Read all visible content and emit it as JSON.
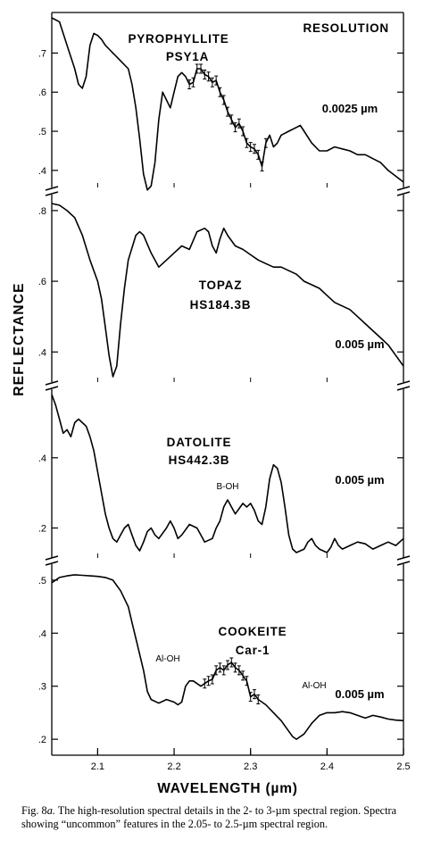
{
  "chart_data": {
    "type": "line",
    "xlabel": "WAVELENGTH (µm)",
    "ylabel": "REFLECTANCE",
    "xlim": [
      2.04,
      2.5
    ],
    "x_ticks": [
      "2.1",
      "2.2",
      "2.3",
      "2.4",
      "2.5"
    ],
    "resolution_heading": "RESOLUTION",
    "panels": [
      {
        "name": "PYROPHYLLITE",
        "sample": "PSY1A",
        "resolution": "0.0025 µm",
        "ylim": [
          0.37,
          0.79
        ],
        "y_ticks": [
          ".4",
          ".5",
          ".6",
          ".7"
        ],
        "annotations": [],
        "error_bar_range": [
          2.22,
          2.32
        ],
        "points": [
          [
            2.04,
            0.79
          ],
          [
            2.05,
            0.78
          ],
          [
            2.06,
            0.72
          ],
          [
            2.07,
            0.66
          ],
          [
            2.075,
            0.62
          ],
          [
            2.08,
            0.61
          ],
          [
            2.085,
            0.64
          ],
          [
            2.09,
            0.72
          ],
          [
            2.095,
            0.75
          ],
          [
            2.1,
            0.745
          ],
          [
            2.105,
            0.735
          ],
          [
            2.11,
            0.72
          ],
          [
            2.115,
            0.71
          ],
          [
            2.12,
            0.7
          ],
          [
            2.13,
            0.68
          ],
          [
            2.14,
            0.66
          ],
          [
            2.145,
            0.62
          ],
          [
            2.15,
            0.56
          ],
          [
            2.155,
            0.48
          ],
          [
            2.16,
            0.39
          ],
          [
            2.165,
            0.35
          ],
          [
            2.17,
            0.36
          ],
          [
            2.175,
            0.42
          ],
          [
            2.18,
            0.53
          ],
          [
            2.185,
            0.6
          ],
          [
            2.19,
            0.58
          ],
          [
            2.195,
            0.56
          ],
          [
            2.2,
            0.6
          ],
          [
            2.205,
            0.64
          ],
          [
            2.21,
            0.65
          ],
          [
            2.215,
            0.64
          ],
          [
            2.22,
            0.62
          ],
          [
            2.225,
            0.625
          ],
          [
            2.23,
            0.66
          ],
          [
            2.235,
            0.66
          ],
          [
            2.24,
            0.645
          ],
          [
            2.245,
            0.64
          ],
          [
            2.25,
            0.625
          ],
          [
            2.255,
            0.63
          ],
          [
            2.26,
            0.6
          ],
          [
            2.265,
            0.58
          ],
          [
            2.27,
            0.55
          ],
          [
            2.275,
            0.53
          ],
          [
            2.28,
            0.51
          ],
          [
            2.285,
            0.52
          ],
          [
            2.29,
            0.5
          ],
          [
            2.295,
            0.47
          ],
          [
            2.3,
            0.46
          ],
          [
            2.305,
            0.455
          ],
          [
            2.31,
            0.44
          ],
          [
            2.315,
            0.41
          ],
          [
            2.32,
            0.47
          ],
          [
            2.325,
            0.49
          ],
          [
            2.33,
            0.46
          ],
          [
            2.335,
            0.47
          ],
          [
            2.34,
            0.49
          ],
          [
            2.35,
            0.5
          ],
          [
            2.36,
            0.51
          ],
          [
            2.365,
            0.515
          ],
          [
            2.37,
            0.5
          ],
          [
            2.38,
            0.47
          ],
          [
            2.39,
            0.45
          ],
          [
            2.4,
            0.45
          ],
          [
            2.41,
            0.46
          ],
          [
            2.42,
            0.455
          ],
          [
            2.43,
            0.45
          ],
          [
            2.44,
            0.44
          ],
          [
            2.45,
            0.44
          ],
          [
            2.46,
            0.43
          ],
          [
            2.47,
            0.42
          ],
          [
            2.48,
            0.4
          ],
          [
            2.49,
            0.385
          ],
          [
            2.5,
            0.37
          ]
        ]
      },
      {
        "name": "TOPAZ",
        "sample": "HS184.3B",
        "resolution": "0.005 µm",
        "ylim": [
          0.33,
          0.83
        ],
        "y_ticks": [
          ".4",
          ".6",
          ".8"
        ],
        "annotations": [],
        "points": [
          [
            2.04,
            0.82
          ],
          [
            2.05,
            0.815
          ],
          [
            2.06,
            0.8
          ],
          [
            2.07,
            0.78
          ],
          [
            2.08,
            0.73
          ],
          [
            2.09,
            0.66
          ],
          [
            2.1,
            0.6
          ],
          [
            2.105,
            0.55
          ],
          [
            2.11,
            0.47
          ],
          [
            2.115,
            0.39
          ],
          [
            2.12,
            0.33
          ],
          [
            2.125,
            0.36
          ],
          [
            2.13,
            0.48
          ],
          [
            2.135,
            0.58
          ],
          [
            2.14,
            0.66
          ],
          [
            2.15,
            0.73
          ],
          [
            2.155,
            0.74
          ],
          [
            2.16,
            0.73
          ],
          [
            2.17,
            0.68
          ],
          [
            2.18,
            0.64
          ],
          [
            2.19,
            0.66
          ],
          [
            2.2,
            0.68
          ],
          [
            2.21,
            0.7
          ],
          [
            2.22,
            0.69
          ],
          [
            2.23,
            0.74
          ],
          [
            2.24,
            0.75
          ],
          [
            2.245,
            0.74
          ],
          [
            2.25,
            0.7
          ],
          [
            2.255,
            0.68
          ],
          [
            2.26,
            0.72
          ],
          [
            2.265,
            0.75
          ],
          [
            2.27,
            0.73
          ],
          [
            2.28,
            0.7
          ],
          [
            2.29,
            0.69
          ],
          [
            2.3,
            0.675
          ],
          [
            2.31,
            0.66
          ],
          [
            2.32,
            0.65
          ],
          [
            2.33,
            0.64
          ],
          [
            2.34,
            0.64
          ],
          [
            2.35,
            0.63
          ],
          [
            2.36,
            0.62
          ],
          [
            2.37,
            0.6
          ],
          [
            2.38,
            0.59
          ],
          [
            2.39,
            0.58
          ],
          [
            2.4,
            0.56
          ],
          [
            2.41,
            0.54
          ],
          [
            2.42,
            0.53
          ],
          [
            2.43,
            0.52
          ],
          [
            2.44,
            0.5
          ],
          [
            2.45,
            0.48
          ],
          [
            2.46,
            0.46
          ],
          [
            2.47,
            0.44
          ],
          [
            2.48,
            0.42
          ],
          [
            2.49,
            0.39
          ],
          [
            2.5,
            0.36
          ]
        ]
      },
      {
        "name": "DATOLITE",
        "sample": "HS442.3B",
        "resolution": "0.005 µm",
        "ylim": [
          0.13,
          0.58
        ],
        "y_ticks": [
          ".2",
          ".4"
        ],
        "annotations": [
          "B-OH"
        ],
        "points": [
          [
            2.04,
            0.58
          ],
          [
            2.045,
            0.55
          ],
          [
            2.05,
            0.51
          ],
          [
            2.055,
            0.47
          ],
          [
            2.06,
            0.48
          ],
          [
            2.065,
            0.46
          ],
          [
            2.07,
            0.5
          ],
          [
            2.075,
            0.51
          ],
          [
            2.08,
            0.5
          ],
          [
            2.085,
            0.49
          ],
          [
            2.09,
            0.46
          ],
          [
            2.095,
            0.42
          ],
          [
            2.1,
            0.36
          ],
          [
            2.105,
            0.3
          ],
          [
            2.11,
            0.24
          ],
          [
            2.115,
            0.2
          ],
          [
            2.12,
            0.17
          ],
          [
            2.125,
            0.16
          ],
          [
            2.13,
            0.18
          ],
          [
            2.135,
            0.2
          ],
          [
            2.14,
            0.21
          ],
          [
            2.145,
            0.18
          ],
          [
            2.15,
            0.15
          ],
          [
            2.155,
            0.135
          ],
          [
            2.16,
            0.16
          ],
          [
            2.165,
            0.19
          ],
          [
            2.17,
            0.2
          ],
          [
            2.175,
            0.18
          ],
          [
            2.18,
            0.17
          ],
          [
            2.19,
            0.2
          ],
          [
            2.195,
            0.22
          ],
          [
            2.2,
            0.2
          ],
          [
            2.205,
            0.17
          ],
          [
            2.21,
            0.18
          ],
          [
            2.22,
            0.21
          ],
          [
            2.23,
            0.2
          ],
          [
            2.235,
            0.18
          ],
          [
            2.24,
            0.16
          ],
          [
            2.25,
            0.17
          ],
          [
            2.255,
            0.2
          ],
          [
            2.26,
            0.22
          ],
          [
            2.265,
            0.26
          ],
          [
            2.27,
            0.28
          ],
          [
            2.275,
            0.26
          ],
          [
            2.28,
            0.24
          ],
          [
            2.29,
            0.27
          ],
          [
            2.295,
            0.26
          ],
          [
            2.3,
            0.27
          ],
          [
            2.305,
            0.25
          ],
          [
            2.31,
            0.22
          ],
          [
            2.315,
            0.21
          ],
          [
            2.32,
            0.26
          ],
          [
            2.325,
            0.34
          ],
          [
            2.33,
            0.38
          ],
          [
            2.335,
            0.37
          ],
          [
            2.34,
            0.33
          ],
          [
            2.345,
            0.26
          ],
          [
            2.35,
            0.18
          ],
          [
            2.355,
            0.14
          ],
          [
            2.36,
            0.13
          ],
          [
            2.37,
            0.14
          ],
          [
            2.375,
            0.16
          ],
          [
            2.38,
            0.17
          ],
          [
            2.385,
            0.15
          ],
          [
            2.39,
            0.14
          ],
          [
            2.4,
            0.13
          ],
          [
            2.405,
            0.145
          ],
          [
            2.41,
            0.17
          ],
          [
            2.415,
            0.15
          ],
          [
            2.42,
            0.14
          ],
          [
            2.43,
            0.15
          ],
          [
            2.44,
            0.16
          ],
          [
            2.45,
            0.155
          ],
          [
            2.46,
            0.14
          ],
          [
            2.47,
            0.15
          ],
          [
            2.48,
            0.16
          ],
          [
            2.49,
            0.15
          ],
          [
            2.5,
            0.17
          ]
        ]
      },
      {
        "name": "COOKEITE",
        "sample": "Car-1",
        "resolution": "0.005 µm",
        "ylim": [
          0.18,
          0.52
        ],
        "y_ticks": [
          ".2",
          ".3",
          ".4",
          ".5"
        ],
        "annotations": [
          "Al-OH",
          "Al-OH"
        ],
        "error_bar_range": [
          2.24,
          2.31
        ],
        "points": [
          [
            2.04,
            0.495
          ],
          [
            2.05,
            0.505
          ],
          [
            2.06,
            0.508
          ],
          [
            2.07,
            0.51
          ],
          [
            2.08,
            0.509
          ],
          [
            2.09,
            0.508
          ],
          [
            2.1,
            0.507
          ],
          [
            2.11,
            0.505
          ],
          [
            2.12,
            0.5
          ],
          [
            2.13,
            0.48
          ],
          [
            2.14,
            0.45
          ],
          [
            2.145,
            0.42
          ],
          [
            2.15,
            0.39
          ],
          [
            2.155,
            0.36
          ],
          [
            2.16,
            0.33
          ],
          [
            2.165,
            0.29
          ],
          [
            2.17,
            0.275
          ],
          [
            2.18,
            0.268
          ],
          [
            2.19,
            0.275
          ],
          [
            2.2,
            0.27
          ],
          [
            2.205,
            0.265
          ],
          [
            2.21,
            0.27
          ],
          [
            2.215,
            0.3
          ],
          [
            2.22,
            0.31
          ],
          [
            2.225,
            0.31
          ],
          [
            2.23,
            0.305
          ],
          [
            2.235,
            0.3
          ],
          [
            2.24,
            0.305
          ],
          [
            2.245,
            0.31
          ],
          [
            2.25,
            0.313
          ],
          [
            2.255,
            0.33
          ],
          [
            2.26,
            0.335
          ],
          [
            2.265,
            0.33
          ],
          [
            2.27,
            0.34
          ],
          [
            2.275,
            0.345
          ],
          [
            2.28,
            0.335
          ],
          [
            2.285,
            0.33
          ],
          [
            2.29,
            0.32
          ],
          [
            2.295,
            0.31
          ],
          [
            2.3,
            0.28
          ],
          [
            2.305,
            0.285
          ],
          [
            2.31,
            0.275
          ],
          [
            2.32,
            0.265
          ],
          [
            2.33,
            0.25
          ],
          [
            2.34,
            0.235
          ],
          [
            2.35,
            0.215
          ],
          [
            2.355,
            0.205
          ],
          [
            2.36,
            0.2
          ],
          [
            2.37,
            0.21
          ],
          [
            2.38,
            0.23
          ],
          [
            2.39,
            0.245
          ],
          [
            2.4,
            0.25
          ],
          [
            2.41,
            0.25
          ],
          [
            2.42,
            0.252
          ],
          [
            2.43,
            0.25
          ],
          [
            2.44,
            0.245
          ],
          [
            2.45,
            0.24
          ],
          [
            2.46,
            0.245
          ],
          [
            2.47,
            0.242
          ],
          [
            2.48,
            0.238
          ],
          [
            2.49,
            0.236
          ],
          [
            2.5,
            0.235
          ]
        ]
      }
    ]
  },
  "caption": {
    "lead": "Fig. 8",
    "lead_suffix": "a.",
    "text": "The high-resolution spectral details in the 2- to 3-µm spectral region. Spectra showing “uncommon” features in the 2.05- to 2.5-µm spectral region."
  }
}
